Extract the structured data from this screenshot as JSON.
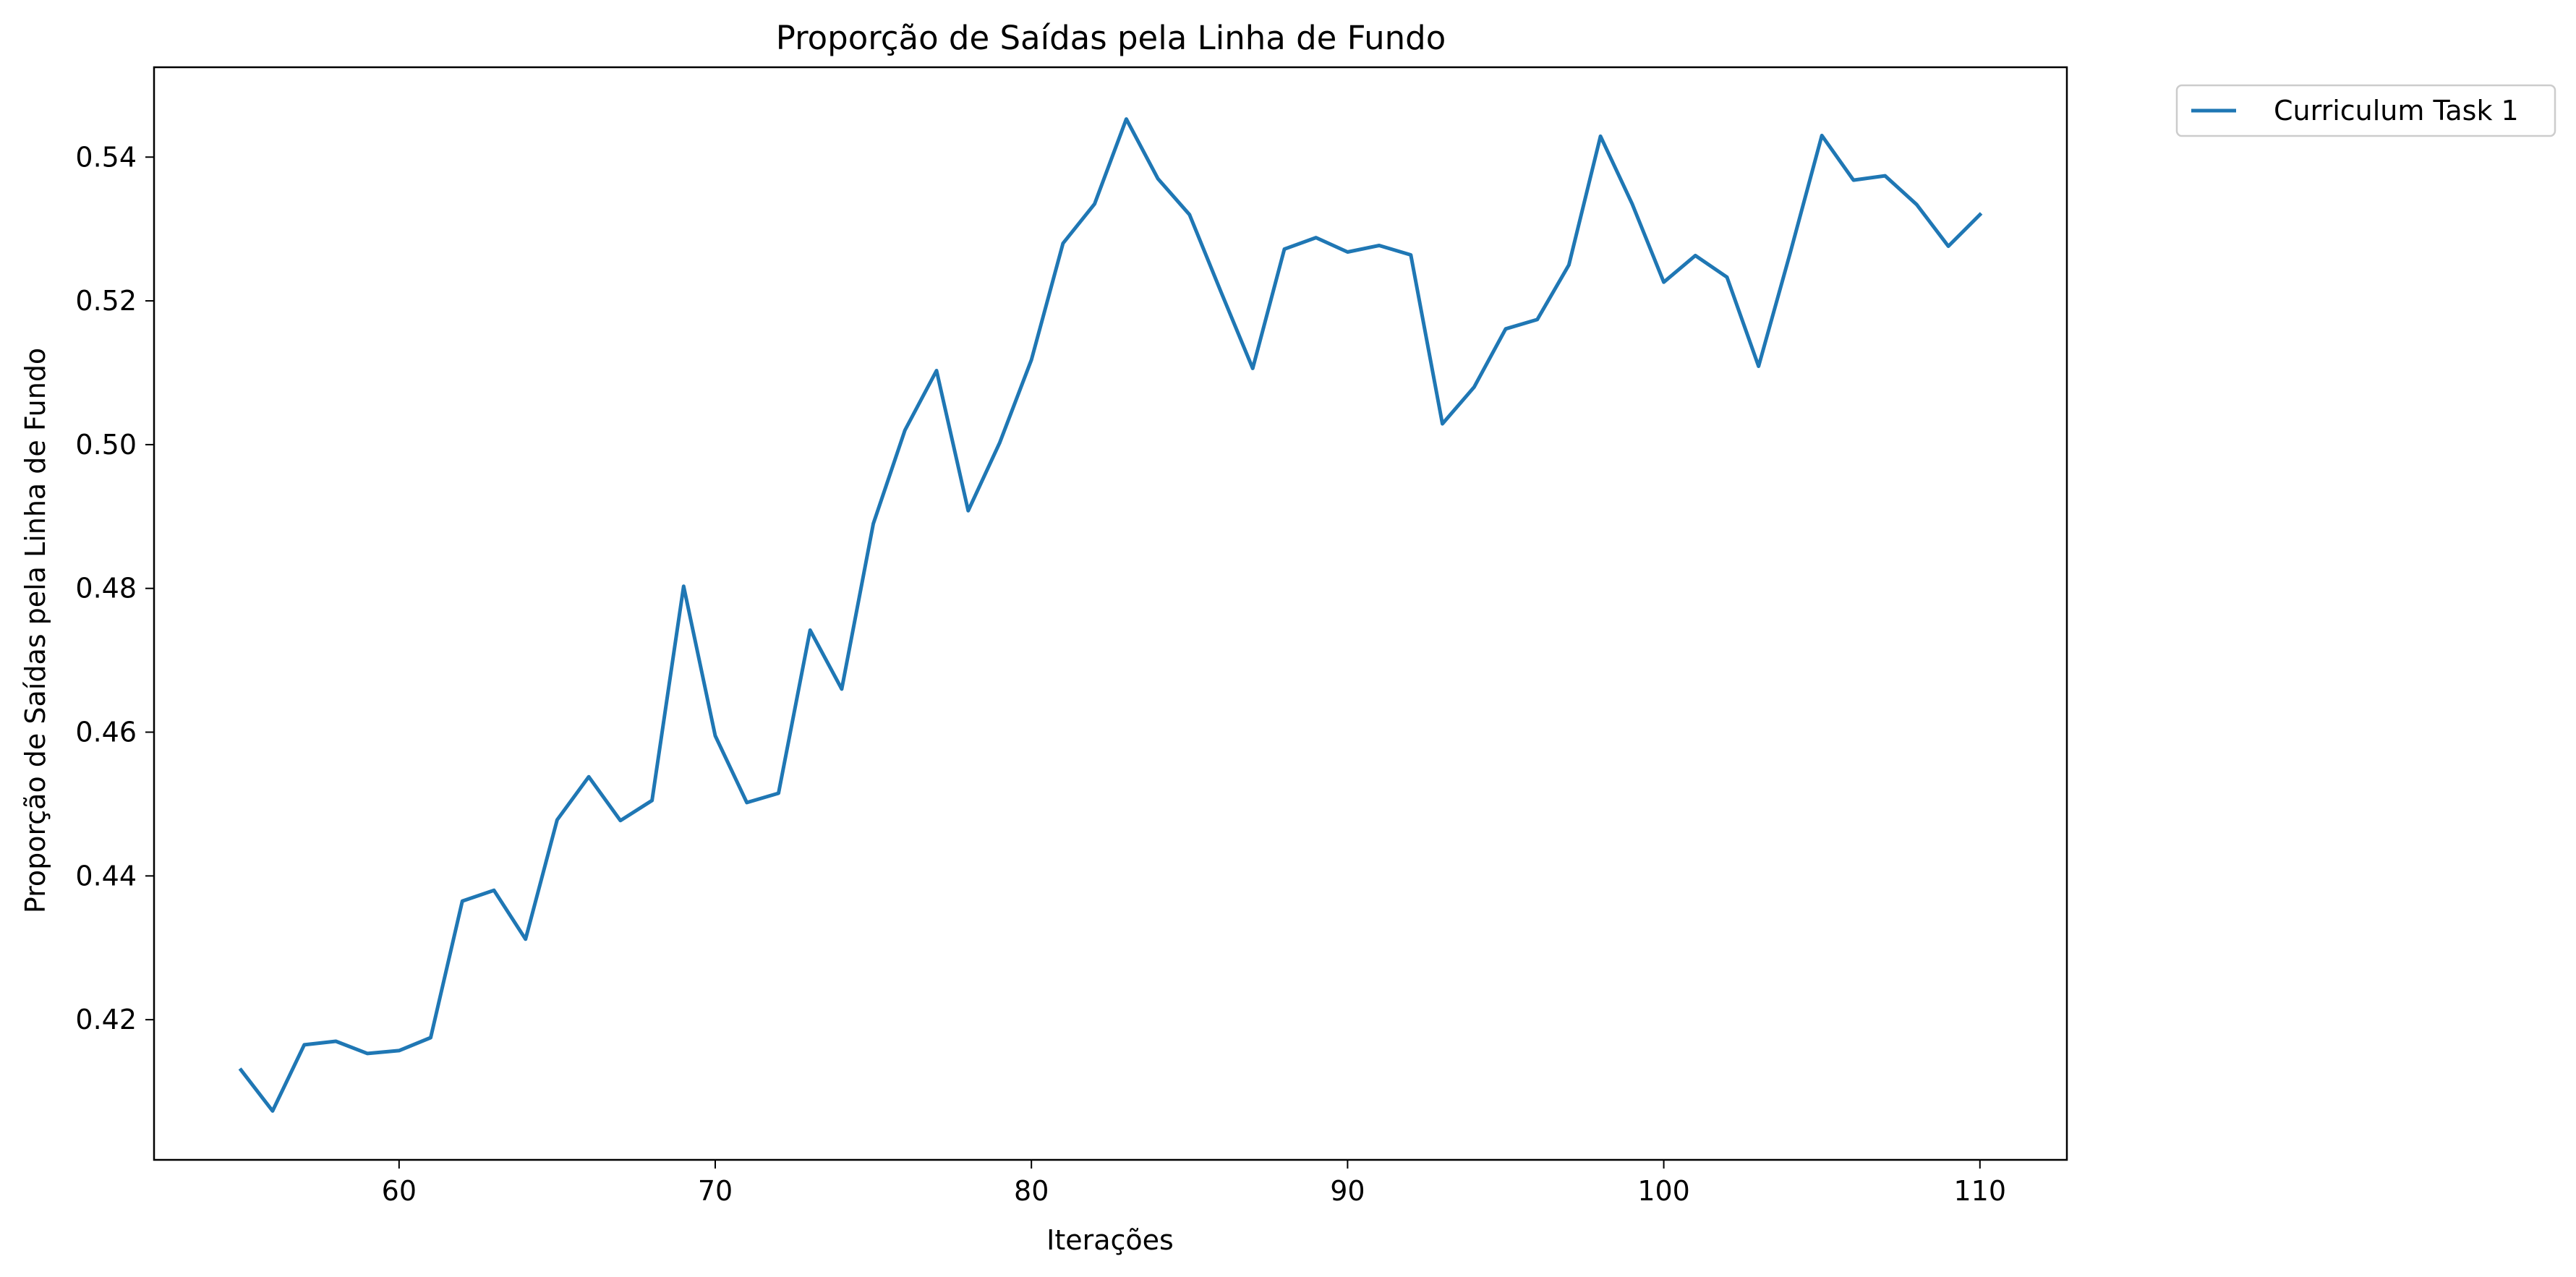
{
  "chart_data": {
    "type": "line",
    "title": "Proporção de Saídas pela Linha de Fundo",
    "xlabel": "Iterações",
    "ylabel": "Proporção de Saídas pela Linha de Fundo",
    "xlim": [
      52.25,
      112.75
    ],
    "ylim": [
      0.4005,
      0.5525
    ],
    "xticks": [
      60,
      70,
      80,
      90,
      100,
      110
    ],
    "yticks": [
      0.42,
      0.44,
      0.46,
      0.48,
      0.5,
      0.52,
      0.54
    ],
    "ytick_labels": [
      "0.42",
      "0.44",
      "0.46",
      "0.48",
      "0.50",
      "0.52",
      "0.54"
    ],
    "grid": false,
    "legend_position": "outside-top-right",
    "series": [
      {
        "name": "Curriculum Task 1",
        "color": "#1f77b4",
        "x": [
          55,
          56,
          57,
          58,
          59,
          60,
          61,
          62,
          63,
          64,
          65,
          66,
          67,
          68,
          69,
          70,
          71,
          72,
          73,
          74,
          75,
          76,
          77,
          78,
          79,
          80,
          81,
          82,
          83,
          84,
          85,
          86,
          87,
          88,
          89,
          90,
          91,
          92,
          93,
          94,
          95,
          96,
          97,
          98,
          99,
          100,
          101,
          102,
          103,
          104,
          105,
          106,
          107,
          108,
          109,
          110
        ],
        "y": [
          0.413,
          0.4073,
          0.4165,
          0.417,
          0.4153,
          0.4157,
          0.4175,
          0.4365,
          0.438,
          0.4312,
          0.4478,
          0.4538,
          0.4477,
          0.4505,
          0.4803,
          0.4595,
          0.4502,
          0.4515,
          0.4742,
          0.466,
          0.489,
          0.502,
          0.5103,
          0.4908,
          0.5003,
          0.5118,
          0.528,
          0.5335,
          0.5453,
          0.537,
          0.532,
          0.5212,
          0.5106,
          0.5272,
          0.5288,
          0.5268,
          0.5277,
          0.5264,
          0.5029,
          0.508,
          0.5161,
          0.5174,
          0.525,
          0.5429,
          0.5335,
          0.5226,
          0.5263,
          0.5233,
          0.5109,
          0.5267,
          0.543,
          0.5368,
          0.5374,
          0.5334,
          0.5276,
          0.532
        ]
      }
    ]
  }
}
